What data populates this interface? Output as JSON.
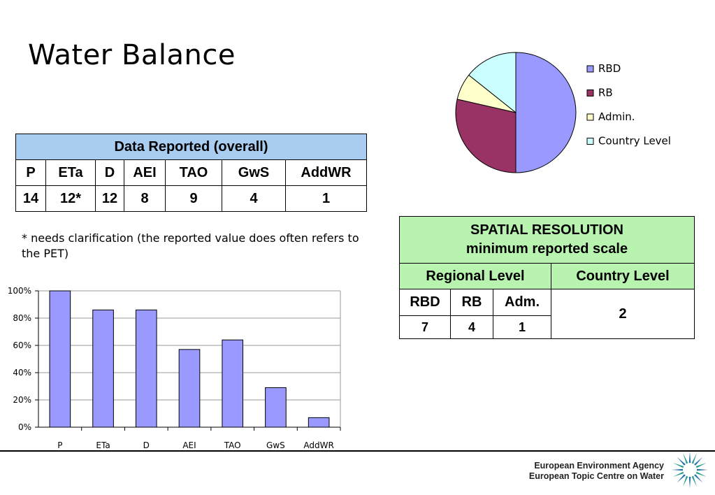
{
  "title": "Water Balance",
  "data_table": {
    "header": "Data Reported (overall)",
    "columns": [
      "P",
      "ETa",
      "D",
      "AEI",
      "TAO",
      "GwS",
      "AddWR"
    ],
    "values": [
      "14",
      "12*",
      "12",
      "8",
      "9",
      "4",
      "1"
    ]
  },
  "note": "* needs clarification (the reported value does often refers to the PET)",
  "spatial_table": {
    "header_line1": "SPATIAL RESOLUTION",
    "header_line2": "minimum reported scale",
    "regional_label": "Regional Level",
    "country_label": "Country Level",
    "sub_columns": [
      "RBD",
      "RB",
      "Adm."
    ],
    "sub_values": [
      "7",
      "4",
      "1"
    ],
    "country_value": "2"
  },
  "footer": {
    "line1": "European Environment Agency",
    "line2": "European Topic Centre on Water"
  },
  "chart_data": [
    {
      "type": "bar",
      "categories": [
        "P",
        "ETa",
        "D",
        "AEI",
        "TAO",
        "GwS",
        "AddWR"
      ],
      "values": [
        100,
        86,
        86,
        57,
        64,
        29,
        7
      ],
      "ylim": [
        0,
        100
      ],
      "yticks": [
        "0%",
        "20%",
        "40%",
        "60%",
        "80%",
        "100%"
      ],
      "grid": true,
      "bar_color": "#9999ff"
    },
    {
      "type": "pie",
      "labels": [
        "RBD",
        "RB",
        "Admin.",
        "Country Level"
      ],
      "values": [
        7,
        4,
        1,
        2
      ],
      "colors": [
        "#9999ff",
        "#993366",
        "#ffffcc",
        "#ccffff"
      ],
      "legend": "right"
    }
  ]
}
